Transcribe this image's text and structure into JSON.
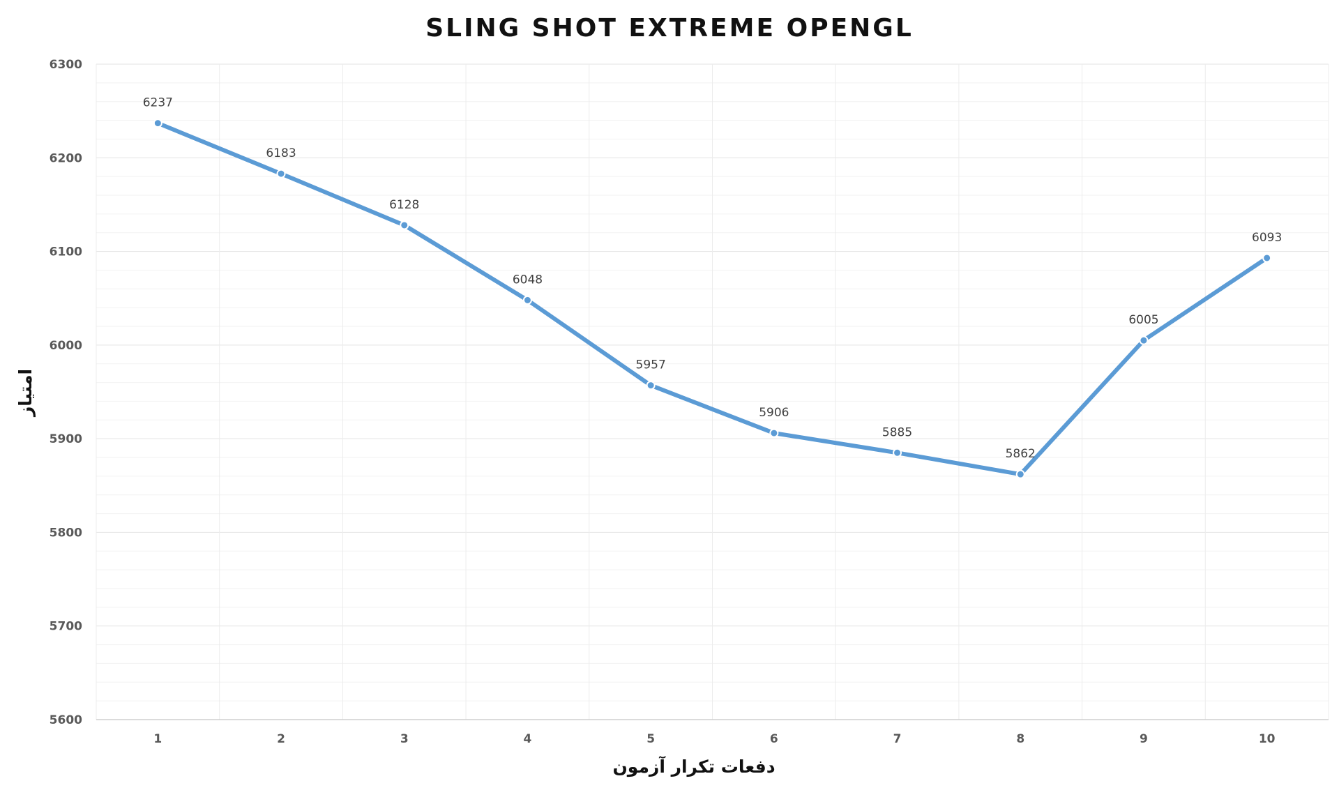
{
  "chart_data": {
    "type": "line",
    "title": "SLING SHOT EXTREME OPENGL",
    "xlabel": "دفعات تکرار آزمون",
    "ylabel": "امتیاز",
    "categories": [
      "1",
      "2",
      "3",
      "4",
      "5",
      "6",
      "7",
      "8",
      "9",
      "10"
    ],
    "series": [
      {
        "values": [
          6237,
          6183,
          6128,
          6048,
          5957,
          5906,
          5885,
          5862,
          6005,
          6093
        ],
        "color": "#5b9bd5"
      }
    ],
    "ylim": [
      5600,
      6300
    ],
    "yticks": [
      "5600",
      "5700",
      "5800",
      "5900",
      "6000",
      "6100",
      "6200",
      "6300"
    ],
    "grid": true,
    "minor_grid": true,
    "legend": "none",
    "data_labels": true
  }
}
